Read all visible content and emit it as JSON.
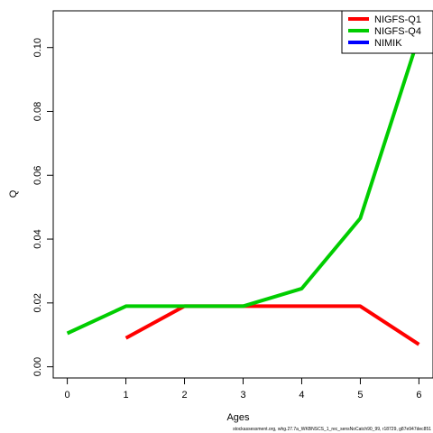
{
  "chart_data": {
    "type": "line",
    "xlabel": "Ages",
    "ylabel": "Q",
    "xlim": [
      -0.24,
      6.24
    ],
    "ylim": [
      -0.0035,
      0.1115
    ],
    "x_ticks": [
      0,
      1,
      2,
      3,
      4,
      5,
      6
    ],
    "y_ticks": [
      0.0,
      0.02,
      0.04,
      0.06,
      0.08,
      0.1
    ],
    "y_tick_labels": [
      "0.00",
      "0.02",
      "0.04",
      "0.06",
      "0.08",
      "0.10"
    ],
    "legend_position": "top-right",
    "grid": false,
    "series": [
      {
        "name": "NIGFS-Q1",
        "color": "#ff0000",
        "x": [
          1,
          2,
          3,
          4,
          5,
          6
        ],
        "values": [
          0.009,
          0.019,
          0.019,
          0.019,
          0.019,
          0.007
        ]
      },
      {
        "name": "NIGFS-Q4",
        "color": "#00cd00",
        "x": [
          0,
          1,
          2,
          3,
          4,
          5,
          6
        ],
        "values": [
          0.0105,
          0.019,
          0.019,
          0.019,
          0.0245,
          0.0465,
          0.1035
        ]
      },
      {
        "name": "NIMIK",
        "color": "#0000ff",
        "x": [],
        "values": []
      }
    ]
  },
  "footer": "stockassessment.org, whg.27.7a_WKBNSCS_1_rec_sensNoCatch90_99, r18729, g87e947dec851"
}
